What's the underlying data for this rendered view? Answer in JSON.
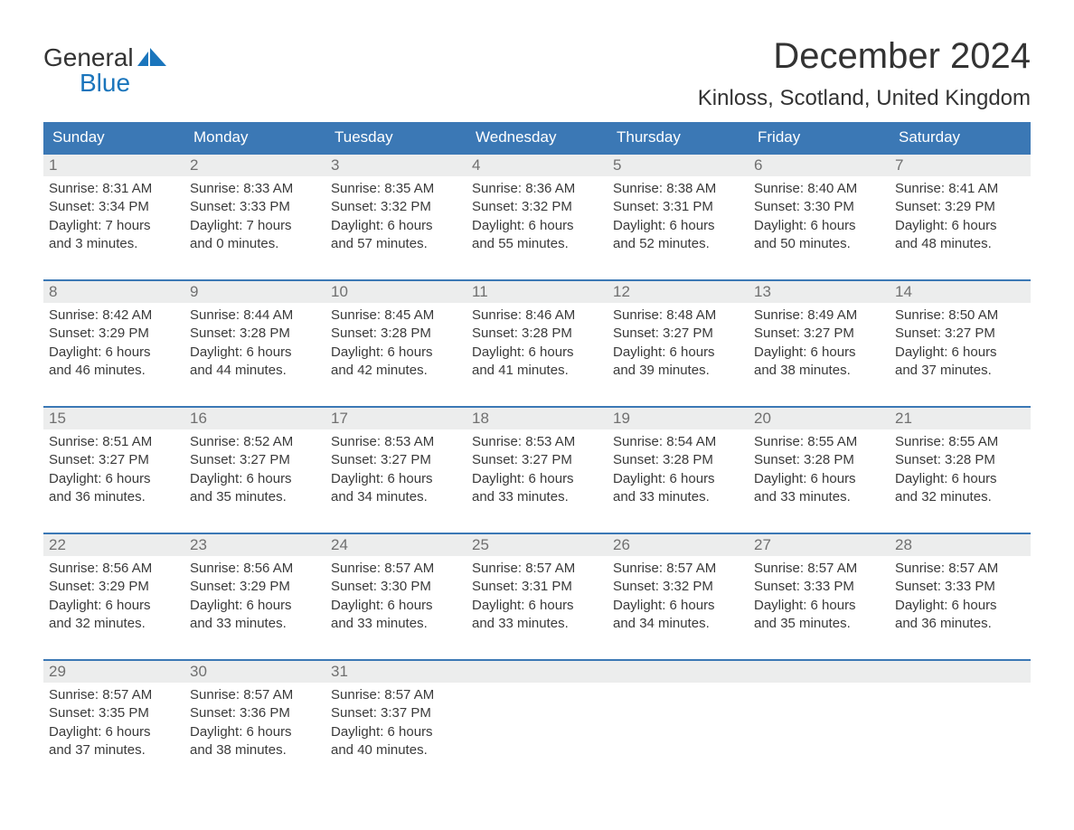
{
  "branding": {
    "logo_general": "General",
    "logo_blue": "Blue",
    "logo_text_color": "#333333",
    "logo_accent_color": "#1a75bc",
    "logo_fontsize": 28
  },
  "header": {
    "month_title": "December 2024",
    "location": "Kinloss, Scotland, United Kingdom",
    "title_fontsize": 40,
    "location_fontsize": 24,
    "title_color": "#333333"
  },
  "calendar": {
    "header_bg": "#3b78b5",
    "header_text_color": "#ffffff",
    "header_fontsize": 17,
    "week_border_color": "#3b78b5",
    "daynum_bg": "#eceded",
    "daynum_color": "#707070",
    "body_text_color": "#3a3a3a",
    "body_fontsize": 15,
    "background_color": "#ffffff",
    "days_of_week": [
      "Sunday",
      "Monday",
      "Tuesday",
      "Wednesday",
      "Thursday",
      "Friday",
      "Saturday"
    ],
    "weeks": [
      [
        {
          "n": "1",
          "sunrise": "Sunrise: 8:31 AM",
          "sunset": "Sunset: 3:34 PM",
          "d1": "Daylight: 7 hours",
          "d2": "and 3 minutes."
        },
        {
          "n": "2",
          "sunrise": "Sunrise: 8:33 AM",
          "sunset": "Sunset: 3:33 PM",
          "d1": "Daylight: 7 hours",
          "d2": "and 0 minutes."
        },
        {
          "n": "3",
          "sunrise": "Sunrise: 8:35 AM",
          "sunset": "Sunset: 3:32 PM",
          "d1": "Daylight: 6 hours",
          "d2": "and 57 minutes."
        },
        {
          "n": "4",
          "sunrise": "Sunrise: 8:36 AM",
          "sunset": "Sunset: 3:32 PM",
          "d1": "Daylight: 6 hours",
          "d2": "and 55 minutes."
        },
        {
          "n": "5",
          "sunrise": "Sunrise: 8:38 AM",
          "sunset": "Sunset: 3:31 PM",
          "d1": "Daylight: 6 hours",
          "d2": "and 52 minutes."
        },
        {
          "n": "6",
          "sunrise": "Sunrise: 8:40 AM",
          "sunset": "Sunset: 3:30 PM",
          "d1": "Daylight: 6 hours",
          "d2": "and 50 minutes."
        },
        {
          "n": "7",
          "sunrise": "Sunrise: 8:41 AM",
          "sunset": "Sunset: 3:29 PM",
          "d1": "Daylight: 6 hours",
          "d2": "and 48 minutes."
        }
      ],
      [
        {
          "n": "8",
          "sunrise": "Sunrise: 8:42 AM",
          "sunset": "Sunset: 3:29 PM",
          "d1": "Daylight: 6 hours",
          "d2": "and 46 minutes."
        },
        {
          "n": "9",
          "sunrise": "Sunrise: 8:44 AM",
          "sunset": "Sunset: 3:28 PM",
          "d1": "Daylight: 6 hours",
          "d2": "and 44 minutes."
        },
        {
          "n": "10",
          "sunrise": "Sunrise: 8:45 AM",
          "sunset": "Sunset: 3:28 PM",
          "d1": "Daylight: 6 hours",
          "d2": "and 42 minutes."
        },
        {
          "n": "11",
          "sunrise": "Sunrise: 8:46 AM",
          "sunset": "Sunset: 3:28 PM",
          "d1": "Daylight: 6 hours",
          "d2": "and 41 minutes."
        },
        {
          "n": "12",
          "sunrise": "Sunrise: 8:48 AM",
          "sunset": "Sunset: 3:27 PM",
          "d1": "Daylight: 6 hours",
          "d2": "and 39 minutes."
        },
        {
          "n": "13",
          "sunrise": "Sunrise: 8:49 AM",
          "sunset": "Sunset: 3:27 PM",
          "d1": "Daylight: 6 hours",
          "d2": "and 38 minutes."
        },
        {
          "n": "14",
          "sunrise": "Sunrise: 8:50 AM",
          "sunset": "Sunset: 3:27 PM",
          "d1": "Daylight: 6 hours",
          "d2": "and 37 minutes."
        }
      ],
      [
        {
          "n": "15",
          "sunrise": "Sunrise: 8:51 AM",
          "sunset": "Sunset: 3:27 PM",
          "d1": "Daylight: 6 hours",
          "d2": "and 36 minutes."
        },
        {
          "n": "16",
          "sunrise": "Sunrise: 8:52 AM",
          "sunset": "Sunset: 3:27 PM",
          "d1": "Daylight: 6 hours",
          "d2": "and 35 minutes."
        },
        {
          "n": "17",
          "sunrise": "Sunrise: 8:53 AM",
          "sunset": "Sunset: 3:27 PM",
          "d1": "Daylight: 6 hours",
          "d2": "and 34 minutes."
        },
        {
          "n": "18",
          "sunrise": "Sunrise: 8:53 AM",
          "sunset": "Sunset: 3:27 PM",
          "d1": "Daylight: 6 hours",
          "d2": "and 33 minutes."
        },
        {
          "n": "19",
          "sunrise": "Sunrise: 8:54 AM",
          "sunset": "Sunset: 3:28 PM",
          "d1": "Daylight: 6 hours",
          "d2": "and 33 minutes."
        },
        {
          "n": "20",
          "sunrise": "Sunrise: 8:55 AM",
          "sunset": "Sunset: 3:28 PM",
          "d1": "Daylight: 6 hours",
          "d2": "and 33 minutes."
        },
        {
          "n": "21",
          "sunrise": "Sunrise: 8:55 AM",
          "sunset": "Sunset: 3:28 PM",
          "d1": "Daylight: 6 hours",
          "d2": "and 32 minutes."
        }
      ],
      [
        {
          "n": "22",
          "sunrise": "Sunrise: 8:56 AM",
          "sunset": "Sunset: 3:29 PM",
          "d1": "Daylight: 6 hours",
          "d2": "and 32 minutes."
        },
        {
          "n": "23",
          "sunrise": "Sunrise: 8:56 AM",
          "sunset": "Sunset: 3:29 PM",
          "d1": "Daylight: 6 hours",
          "d2": "and 33 minutes."
        },
        {
          "n": "24",
          "sunrise": "Sunrise: 8:57 AM",
          "sunset": "Sunset: 3:30 PM",
          "d1": "Daylight: 6 hours",
          "d2": "and 33 minutes."
        },
        {
          "n": "25",
          "sunrise": "Sunrise: 8:57 AM",
          "sunset": "Sunset: 3:31 PM",
          "d1": "Daylight: 6 hours",
          "d2": "and 33 minutes."
        },
        {
          "n": "26",
          "sunrise": "Sunrise: 8:57 AM",
          "sunset": "Sunset: 3:32 PM",
          "d1": "Daylight: 6 hours",
          "d2": "and 34 minutes."
        },
        {
          "n": "27",
          "sunrise": "Sunrise: 8:57 AM",
          "sunset": "Sunset: 3:33 PM",
          "d1": "Daylight: 6 hours",
          "d2": "and 35 minutes."
        },
        {
          "n": "28",
          "sunrise": "Sunrise: 8:57 AM",
          "sunset": "Sunset: 3:33 PM",
          "d1": "Daylight: 6 hours",
          "d2": "and 36 minutes."
        }
      ],
      [
        {
          "n": "29",
          "sunrise": "Sunrise: 8:57 AM",
          "sunset": "Sunset: 3:35 PM",
          "d1": "Daylight: 6 hours",
          "d2": "and 37 minutes."
        },
        {
          "n": "30",
          "sunrise": "Sunrise: 8:57 AM",
          "sunset": "Sunset: 3:36 PM",
          "d1": "Daylight: 6 hours",
          "d2": "and 38 minutes."
        },
        {
          "n": "31",
          "sunrise": "Sunrise: 8:57 AM",
          "sunset": "Sunset: 3:37 PM",
          "d1": "Daylight: 6 hours",
          "d2": "and 40 minutes."
        },
        null,
        null,
        null,
        null
      ]
    ]
  }
}
